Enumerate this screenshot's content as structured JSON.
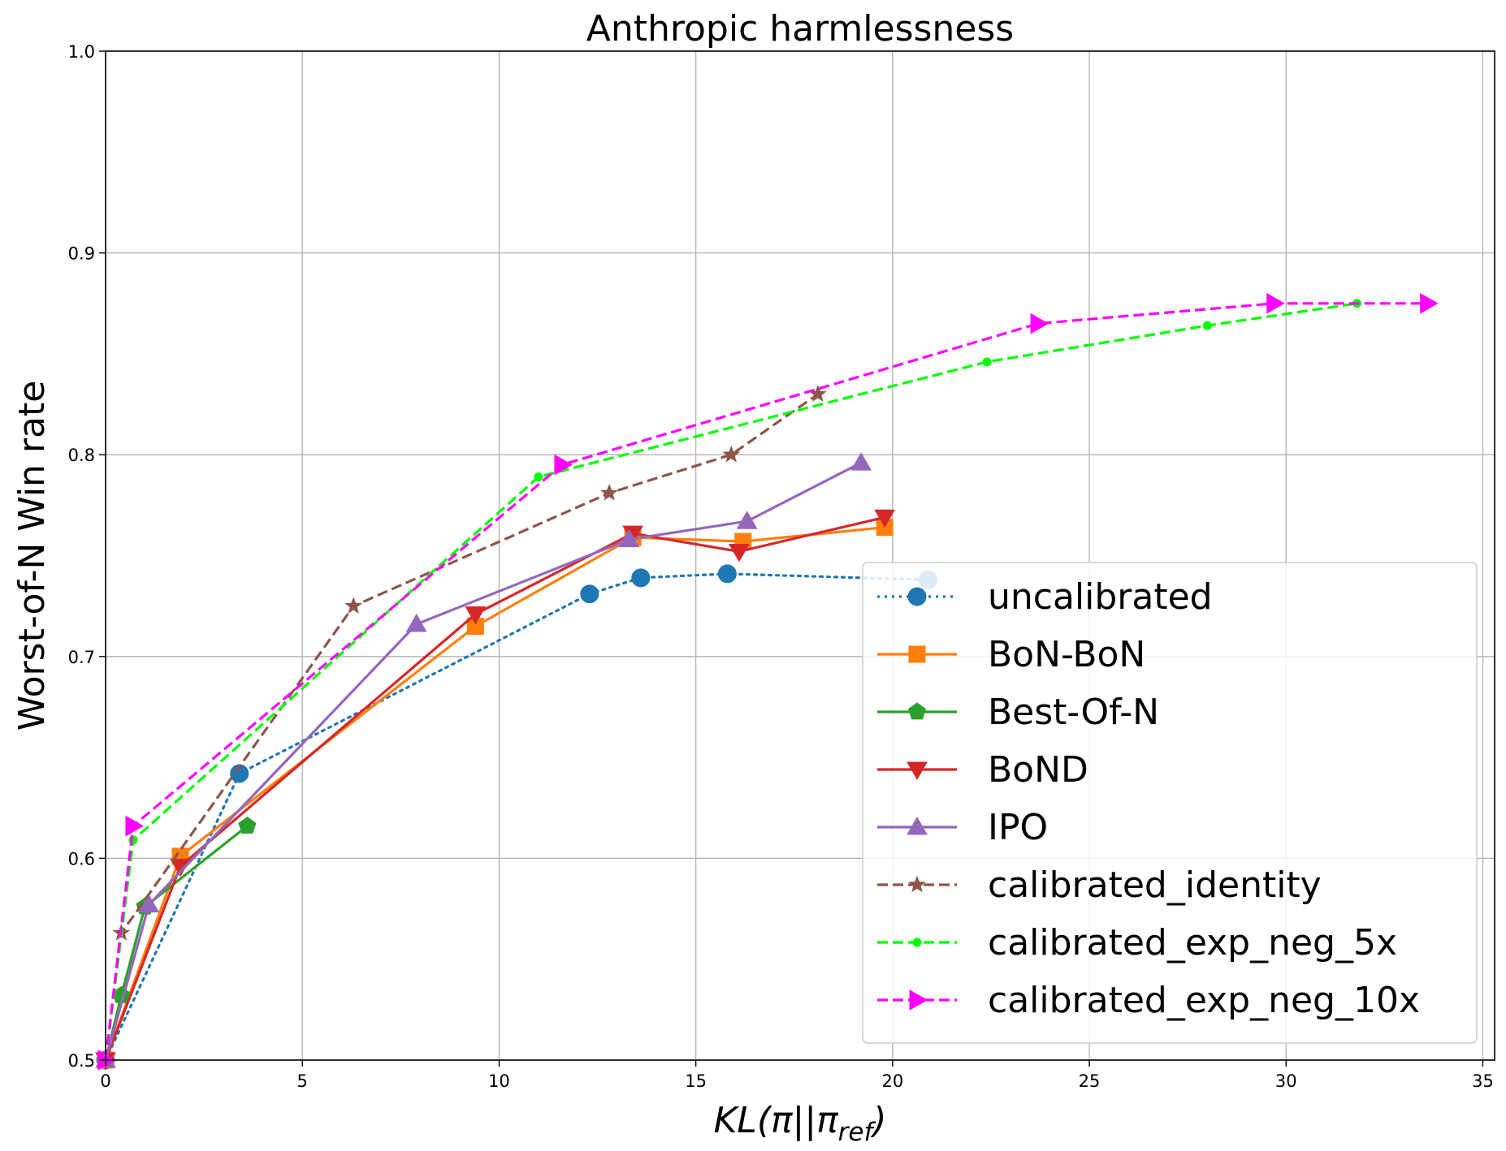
{
  "chart_data": {
    "type": "line",
    "title": "Anthropic harmlessness",
    "xlabel": "KL(π||πref)",
    "xlabel_parts": {
      "main": "KL(π||π",
      "sub": "ref",
      "close": ")"
    },
    "ylabel": "Worst-of-N Win rate",
    "xlim": [
      0,
      35.3
    ],
    "ylim": [
      0.5,
      1.0
    ],
    "xticks": [
      0,
      5,
      10,
      15,
      20,
      25,
      30,
      35
    ],
    "yticks": [
      0.5,
      0.6,
      0.7,
      0.8,
      0.9,
      1.0
    ],
    "xtick_labels": [
      "0",
      "5",
      "10",
      "15",
      "20",
      "25",
      "30",
      "35"
    ],
    "ytick_labels": [
      "0.5",
      "0.6",
      "0.7",
      "0.8",
      "0.9",
      "1.0"
    ],
    "grid": true,
    "legend_position": "lower-right",
    "series": [
      {
        "name": "uncalibrated",
        "color": "#1f77b4",
        "dash": "dotted",
        "marker": "circle",
        "x": [
          0,
          3.4,
          12.3,
          13.6,
          15.8,
          20.9
        ],
        "y": [
          0.5,
          0.642,
          0.731,
          0.739,
          0.741,
          0.738
        ]
      },
      {
        "name": "BoN-BoN",
        "color": "#ff7f0e",
        "dash": "solid",
        "marker": "square",
        "x": [
          0,
          1.9,
          9.4,
          13.4,
          16.2,
          19.8
        ],
        "y": [
          0.5,
          0.601,
          0.715,
          0.759,
          0.757,
          0.764
        ]
      },
      {
        "name": "Best-Of-N",
        "color": "#2ca02c",
        "dash": "solid",
        "marker": "pentagon",
        "x": [
          0,
          0.4,
          1.0,
          3.6
        ],
        "y": [
          0.5,
          0.532,
          0.576,
          0.616
        ]
      },
      {
        "name": "BoND",
        "color": "#d62728",
        "dash": "solid",
        "marker": "triangle-down",
        "x": [
          0,
          1.9,
          9.4,
          13.4,
          16.1,
          19.8
        ],
        "y": [
          0.5,
          0.596,
          0.721,
          0.761,
          0.752,
          0.769
        ]
      },
      {
        "name": "IPO",
        "color": "#9467bd",
        "dash": "solid",
        "marker": "triangle-up",
        "x": [
          0,
          1.1,
          7.9,
          13.3,
          16.3,
          19.2
        ],
        "y": [
          0.5,
          0.577,
          0.716,
          0.758,
          0.767,
          0.796
        ]
      },
      {
        "name": "calibrated_identity",
        "color": "#8c564b",
        "dash": "dashed",
        "marker": "star",
        "x": [
          0,
          0.4,
          6.3,
          12.8,
          15.9,
          18.1
        ],
        "y": [
          0.5,
          0.563,
          0.725,
          0.781,
          0.8,
          0.83
        ]
      },
      {
        "name": "calibrated_exp_neg_5x",
        "color": "#00ff00",
        "dash": "dashed",
        "marker": "dot",
        "x": [
          0,
          0.7,
          11.0,
          22.4,
          28.0,
          31.8
        ],
        "y": [
          0.5,
          0.609,
          0.789,
          0.846,
          0.864,
          0.875
        ]
      },
      {
        "name": "calibrated_exp_neg_10x",
        "color": "#ff00ff",
        "dash": "dashed",
        "marker": "triangle-right",
        "x": [
          0,
          0.7,
          11.6,
          23.7,
          29.7,
          33.6
        ],
        "y": [
          0.5,
          0.616,
          0.795,
          0.865,
          0.875,
          0.875
        ]
      }
    ]
  }
}
